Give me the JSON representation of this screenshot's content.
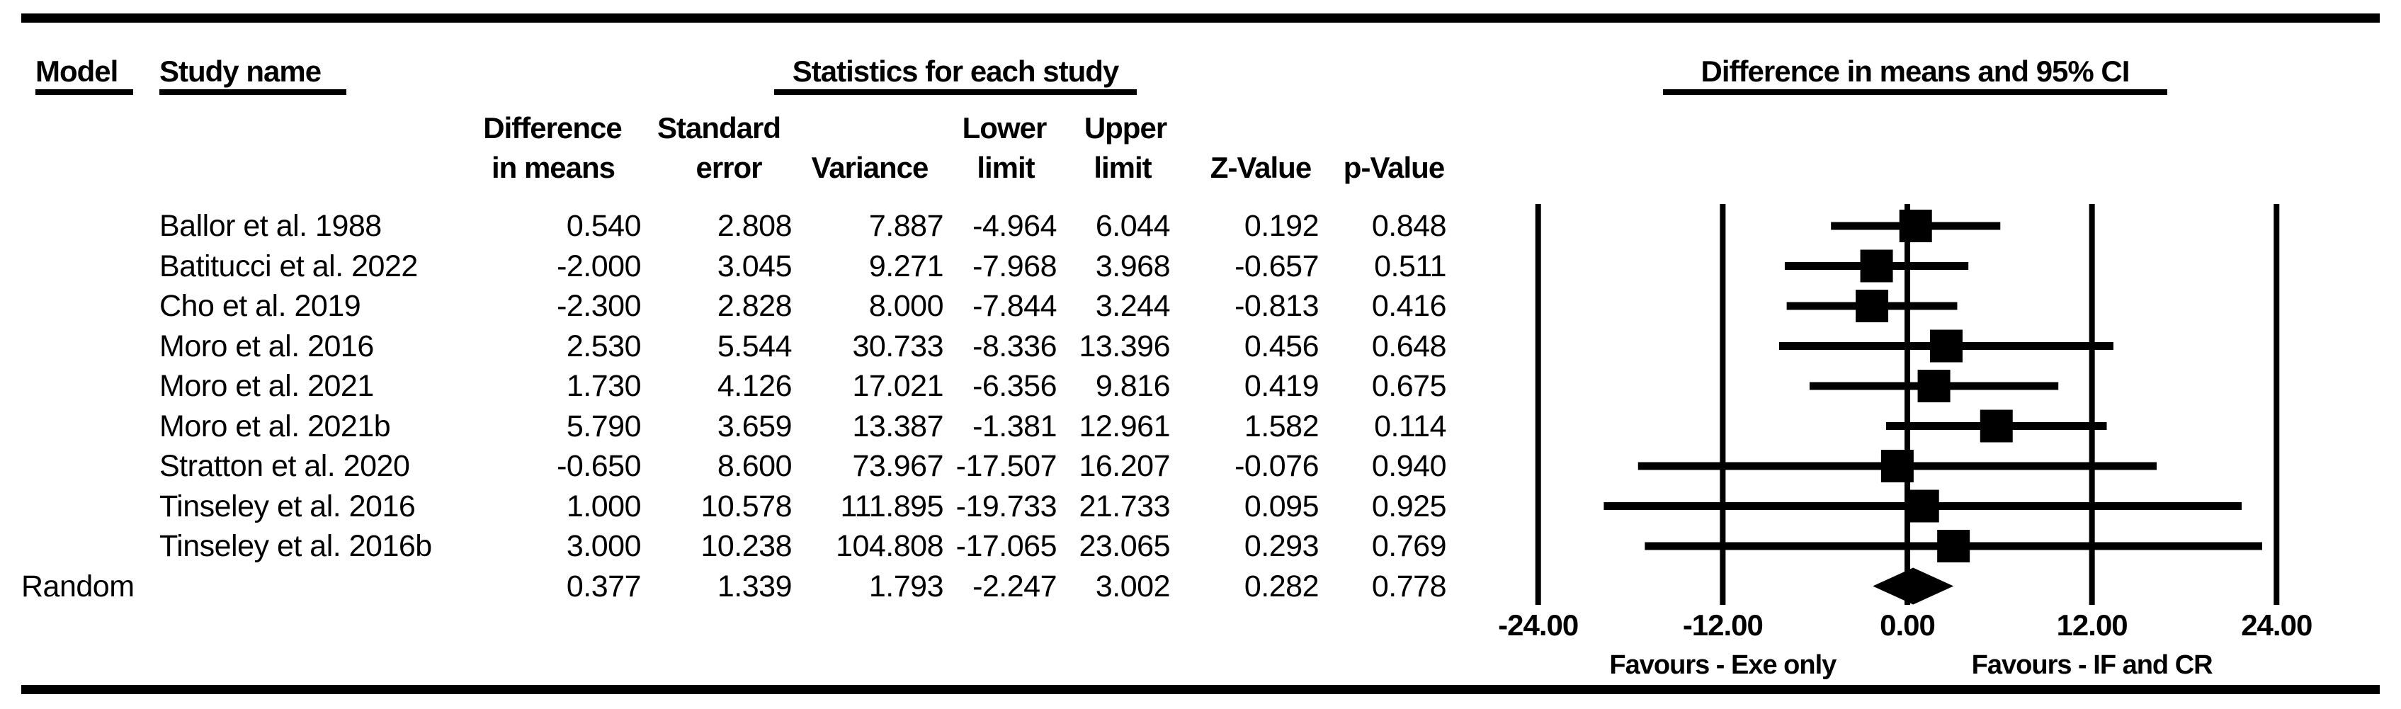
{
  "figure": {
    "model_header": "Model",
    "study_header": "Study name",
    "stats_header": "Statistics for each study",
    "ci_header": "Difference in means and 95% CI",
    "sub_headers": {
      "diff_line1": "Difference",
      "diff_line2": "in means",
      "se_line1": "Standard",
      "se_line2": "error",
      "variance": "Variance",
      "lower_line1": "Lower",
      "lower_line2": "limit",
      "upper_line1": "Upper",
      "upper_line2": "limit",
      "z": "Z-Value",
      "p": "p-Value"
    }
  },
  "chart_data": {
    "type": "forest",
    "title": "Difference in means and 95% CI",
    "columns": [
      "Difference in means",
      "Standard error",
      "Variance",
      "Lower limit",
      "Upper limit",
      "Z-Value",
      "p-Value"
    ],
    "x_axis": {
      "range": [
        -24,
        24
      ],
      "ticks": [
        -24,
        -12,
        0,
        12,
        24
      ],
      "tick_labels": [
        "-24.00",
        "-12.00",
        "0.00",
        "12.00",
        "24.00"
      ]
    },
    "favours_left": "Favours - Exe only",
    "favours_right": "Favours - IF and CR",
    "studies": [
      {
        "name": "Ballor et al. 1988",
        "diff": "0.540",
        "se": "2.808",
        "variance": "7.887",
        "lower": "-4.964",
        "upper": "6.044",
        "z": "0.192",
        "p": "0.848"
      },
      {
        "name": "Batitucci et al. 2022",
        "diff": "-2.000",
        "se": "3.045",
        "variance": "9.271",
        "lower": "-7.968",
        "upper": "3.968",
        "z": "-0.657",
        "p": "0.511"
      },
      {
        "name": "Cho et al. 2019",
        "diff": "-2.300",
        "se": "2.828",
        "variance": "8.000",
        "lower": "-7.844",
        "upper": "3.244",
        "z": "-0.813",
        "p": "0.416"
      },
      {
        "name": "Moro et al. 2016",
        "diff": "2.530",
        "se": "5.544",
        "variance": "30.733",
        "lower": "-8.336",
        "upper": "13.396",
        "z": "0.456",
        "p": "0.648"
      },
      {
        "name": "Moro et al. 2021",
        "diff": "1.730",
        "se": "4.126",
        "variance": "17.021",
        "lower": "-6.356",
        "upper": "9.816",
        "z": "0.419",
        "p": "0.675"
      },
      {
        "name": "Moro et al. 2021b",
        "diff": "5.790",
        "se": "3.659",
        "variance": "13.387",
        "lower": "-1.381",
        "upper": "12.961",
        "z": "1.582",
        "p": "0.114"
      },
      {
        "name": "Stratton et al. 2020",
        "diff": "-0.650",
        "se": "8.600",
        "variance": "73.967",
        "lower": "-17.507",
        "upper": "16.207",
        "z": "-0.076",
        "p": "0.940"
      },
      {
        "name": "Tinseley et al. 2016",
        "diff": "1.000",
        "se": "10.578",
        "variance": "111.895",
        "lower": "-19.733",
        "upper": "21.733",
        "z": "0.095",
        "p": "0.925"
      },
      {
        "name": "Tinseley et al. 2016b",
        "diff": "3.000",
        "se": "10.238",
        "variance": "104.808",
        "lower": "-17.065",
        "upper": "23.065",
        "z": "0.293",
        "p": "0.769"
      }
    ],
    "summary": {
      "model": "Random",
      "shape": "diamond",
      "diff": "0.377",
      "se": "1.339",
      "variance": "1.793",
      "lower": "-2.247",
      "upper": "3.002",
      "z": "0.282",
      "p": "0.778"
    }
  }
}
